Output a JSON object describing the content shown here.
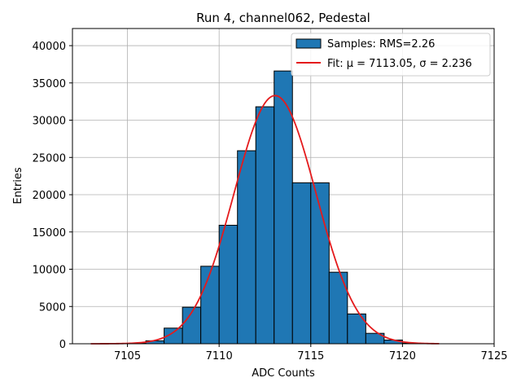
{
  "chart_data": {
    "type": "bar",
    "title": "Run 4, channel062, Pedestal",
    "xlabel": "ADC Counts",
    "ylabel": "Entries",
    "xlim": [
      7102,
      7125
    ],
    "ylim": [
      0,
      42300
    ],
    "grid": true,
    "legend_position": "top-right",
    "x_ticks": [
      7105,
      7110,
      7115,
      7120,
      7125
    ],
    "y_ticks": [
      0,
      5000,
      10000,
      15000,
      20000,
      25000,
      30000,
      35000,
      40000
    ],
    "bins": {
      "edges": [
        7103,
        7104,
        7105,
        7106,
        7107,
        7108,
        7109,
        7110,
        7111,
        7112,
        7113,
        7114,
        7115,
        7116,
        7117,
        7118,
        7119,
        7120,
        7121,
        7122
      ],
      "counts": [
        0,
        0,
        50,
        400,
        2100,
        4900,
        10400,
        15900,
        25900,
        31800,
        36600,
        21600,
        21600,
        9600,
        4000,
        1400,
        500,
        80,
        0
      ],
      "color": "#1f77b4",
      "edge_color": "#000000"
    },
    "fit": {
      "mu": 7113.05,
      "sigma": 2.236,
      "amplitude": 33300,
      "x_range": [
        7103,
        7122
      ],
      "color": "#e41a1c"
    },
    "legend": [
      {
        "label": "Samples: RMS=2.26",
        "kind": "bar",
        "color": "#1f77b4"
      },
      {
        "label": "Fit: μ = 7113.05, σ = 2.236",
        "kind": "line",
        "color": "#e41a1c"
      }
    ]
  }
}
